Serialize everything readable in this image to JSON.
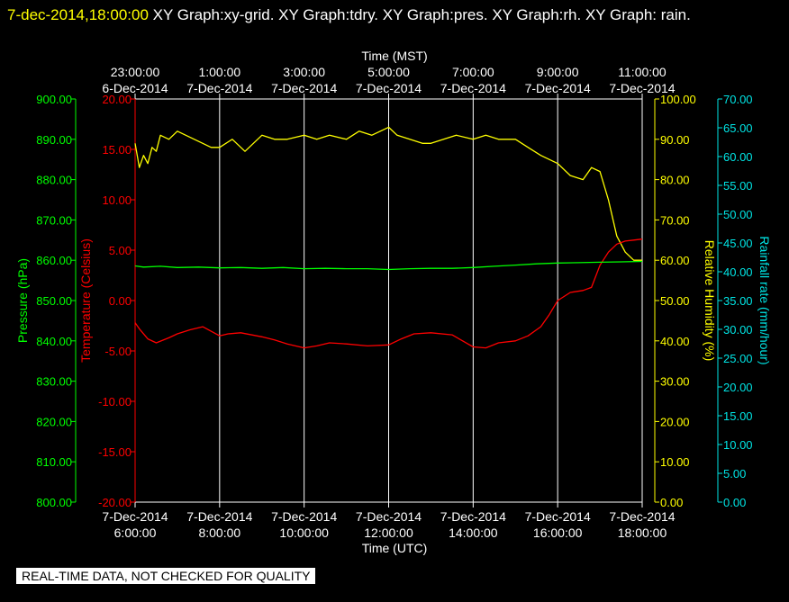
{
  "header": {
    "timestamp": "7-dec-2014,18:00:00",
    "title": "XY Graph:xy-grid.  XY Graph:tdry.  XY Graph:pres.  XY Graph:rh.  XY Graph: rain."
  },
  "footer": {
    "notice": "REAL-TIME DATA, NOT CHECKED FOR QUALITY"
  },
  "colors": {
    "background": "#000000",
    "grid": "#ffffff",
    "temperature": "#ff0000",
    "pressure": "#00ff00",
    "humidity": "#ffff00",
    "rainfall": "#00e5e5"
  },
  "chart_data": {
    "type": "line",
    "grid": true,
    "x_bottom": {
      "label": "Time (UTC)",
      "ticks": [
        {
          "date": "7-Dec-2014",
          "time": "6:00:00"
        },
        {
          "date": "7-Dec-2014",
          "time": "8:00:00"
        },
        {
          "date": "7-Dec-2014",
          "time": "10:00:00"
        },
        {
          "date": "7-Dec-2014",
          "time": "12:00:00"
        },
        {
          "date": "7-Dec-2014",
          "time": "14:00:00"
        },
        {
          "date": "7-Dec-2014",
          "time": "16:00:00"
        },
        {
          "date": "7-Dec-2014",
          "time": "18:00:00"
        }
      ]
    },
    "x_top": {
      "label": "Time (MST)",
      "ticks": [
        {
          "time": "23:00:00",
          "date": "6-Dec-2014"
        },
        {
          "time": "1:00:00",
          "date": "7-Dec-2014"
        },
        {
          "time": "3:00:00",
          "date": "7-Dec-2014"
        },
        {
          "time": "5:00:00",
          "date": "7-Dec-2014"
        },
        {
          "time": "7:00:00",
          "date": "7-Dec-2014"
        },
        {
          "time": "9:00:00",
          "date": "7-Dec-2014"
        },
        {
          "time": "11:00:00",
          "date": "7-Dec-2014"
        }
      ]
    },
    "axes": {
      "pressure": {
        "label": "Pressure (hPa)",
        "range": [
          800,
          900
        ],
        "ticks": [
          "800.00",
          "810.00",
          "820.00",
          "830.00",
          "840.00",
          "850.00",
          "860.00",
          "870.00",
          "880.00",
          "890.00",
          "900.00"
        ]
      },
      "temperature": {
        "label": "Temperature (Celsius)",
        "range": [
          -20,
          20
        ],
        "ticks": [
          "-20.00",
          "-15.00",
          "-10.00",
          "-5.00",
          "0.00",
          "5.00",
          "10.00",
          "15.00",
          "20.00"
        ]
      },
      "humidity": {
        "label": "Relative Humidity (%)",
        "range": [
          0,
          100
        ],
        "ticks": [
          "0.00",
          "10.00",
          "20.00",
          "30.00",
          "40.00",
          "50.00",
          "60.00",
          "70.00",
          "80.00",
          "90.00",
          "100.00"
        ]
      },
      "rainfall": {
        "label": "Rainfall rate (mm/hour)",
        "range": [
          0,
          70
        ],
        "ticks": [
          "0.00",
          "5.00",
          "10.00",
          "15.00",
          "20.00",
          "25.00",
          "30.00",
          "35.00",
          "40.00",
          "45.00",
          "50.00",
          "55.00",
          "60.00",
          "65.00",
          "70.00"
        ]
      }
    },
    "x_range_hours_utc": [
      6,
      18
    ],
    "series": [
      {
        "key": "humidity",
        "x": [
          6.0,
          6.1,
          6.2,
          6.3,
          6.4,
          6.5,
          6.6,
          6.8,
          7.0,
          7.2,
          7.4,
          7.6,
          7.8,
          8.0,
          8.3,
          8.6,
          9.0,
          9.3,
          9.6,
          10.0,
          10.3,
          10.6,
          11.0,
          11.3,
          11.6,
          12.0,
          12.2,
          12.5,
          12.8,
          13.0,
          13.3,
          13.6,
          14.0,
          14.3,
          14.6,
          15.0,
          15.3,
          15.6,
          15.8,
          16.0,
          16.3,
          16.6,
          16.8,
          17.0,
          17.2,
          17.4,
          17.6,
          17.8,
          18.0
        ],
        "y": [
          89,
          83,
          86,
          84,
          88,
          87,
          91,
          90,
          92,
          91,
          90,
          89,
          88,
          88,
          90,
          87,
          91,
          90,
          90,
          91,
          90,
          91,
          90,
          92,
          91,
          93,
          91,
          90,
          89,
          89,
          90,
          91,
          90,
          91,
          90,
          90,
          88,
          86,
          85,
          84,
          81,
          80,
          83,
          82,
          75,
          66,
          62,
          60,
          60
        ]
      },
      {
        "key": "temperature",
        "x": [
          6.0,
          6.1,
          6.3,
          6.5,
          6.8,
          7.0,
          7.3,
          7.6,
          8.0,
          8.2,
          8.5,
          9.0,
          9.3,
          9.6,
          10.0,
          10.3,
          10.6,
          11.0,
          11.5,
          12.0,
          12.3,
          12.6,
          13.0,
          13.5,
          14.0,
          14.3,
          14.6,
          15.0,
          15.3,
          15.6,
          15.8,
          16.0,
          16.3,
          16.6,
          16.8,
          17.0,
          17.2,
          17.4,
          17.6,
          17.8,
          18.0
        ],
        "y": [
          -2.2,
          -2.8,
          -3.8,
          -4.2,
          -3.7,
          -3.3,
          -2.9,
          -2.6,
          -3.5,
          -3.3,
          -3.2,
          -3.6,
          -3.9,
          -4.3,
          -4.7,
          -4.5,
          -4.2,
          -4.3,
          -4.5,
          -4.4,
          -3.8,
          -3.3,
          -3.2,
          -3.4,
          -4.6,
          -4.7,
          -4.2,
          -4.0,
          -3.5,
          -2.6,
          -1.4,
          0.0,
          0.8,
          1.0,
          1.3,
          3.5,
          4.8,
          5.6,
          5.9,
          6.0,
          6.1
        ]
      },
      {
        "key": "pressure",
        "x": [
          6.0,
          6.2,
          6.6,
          7.0,
          7.5,
          8.0,
          8.5,
          9.0,
          9.5,
          10.0,
          10.5,
          11.0,
          11.5,
          12.0,
          12.5,
          13.0,
          13.5,
          14.0,
          14.5,
          15.0,
          15.5,
          16.0,
          16.5,
          17.0,
          17.5,
          18.0
        ],
        "y": [
          858.6,
          858.3,
          858.5,
          858.2,
          858.3,
          858.1,
          858.2,
          858.0,
          858.2,
          857.9,
          858.0,
          857.9,
          857.9,
          857.7,
          857.9,
          858.0,
          858.0,
          858.2,
          858.5,
          858.8,
          859.1,
          859.3,
          859.4,
          859.5,
          859.6,
          859.7
        ]
      },
      {
        "key": "rainfall",
        "x": [],
        "y": []
      }
    ]
  }
}
